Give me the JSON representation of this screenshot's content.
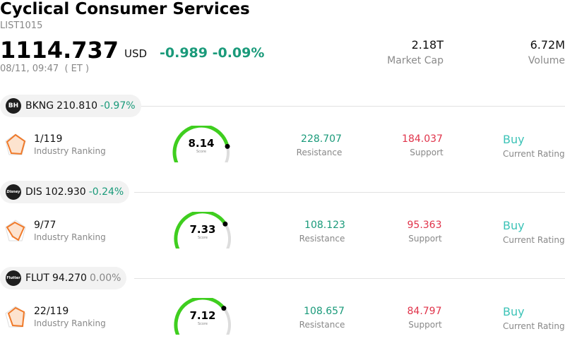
{
  "header": {
    "title": "Cyclical Consumer Services",
    "code": "LIST1015",
    "price": "1114.737",
    "currency": "USD",
    "change": "-0.989 -0.09%",
    "timestamp": "08/11, 09:47  ( ET )",
    "market_cap_value": "2.18T",
    "market_cap_label": "Market Cap",
    "volume_value": "6.72M",
    "volume_label": "Volume"
  },
  "colors": {
    "positive_accent": "#1a9a7a",
    "support": "#e0334a",
    "rating": "#3cc3b7",
    "gauge_green": "#3fce1f"
  },
  "stocks": [
    {
      "symbol": "BKNG",
      "price": "210.810",
      "change": "-0.97%",
      "change_kind": "neg",
      "logo_text": "BH",
      "logo_icon": "booking-holdings-logo",
      "rank": "1/119",
      "rank_label": "Industry Ranking",
      "score": "8.14",
      "score_label": "Score",
      "score_fraction": 0.814,
      "resistance": "228.707",
      "resistance_label": "Resistance",
      "support": "184.037",
      "support_label": "Support",
      "rating": "Buy",
      "rating_label": "Current Rating"
    },
    {
      "symbol": "DIS",
      "price": "102.930",
      "change": "-0.24%",
      "change_kind": "neg",
      "logo_text": "Disney",
      "logo_icon": "disney-logo",
      "rank": "9/77",
      "rank_label": "Industry Ranking",
      "score": "7.33",
      "score_label": "Score",
      "score_fraction": 0.733,
      "resistance": "108.123",
      "resistance_label": "Resistance",
      "support": "95.363",
      "support_label": "Support",
      "rating": "Buy",
      "rating_label": "Current Rating"
    },
    {
      "symbol": "FLUT",
      "price": "94.270",
      "change": "0.00%",
      "change_kind": "flat",
      "logo_text": "Flutter",
      "logo_icon": "flutter-logo",
      "rank": "22/119",
      "rank_label": "Industry Ranking",
      "score": "7.12",
      "score_label": "Score",
      "score_fraction": 0.712,
      "resistance": "108.657",
      "resistance_label": "Resistance",
      "support": "84.797",
      "support_label": "Support",
      "rating": "Buy",
      "rating_label": "Current Rating"
    }
  ]
}
